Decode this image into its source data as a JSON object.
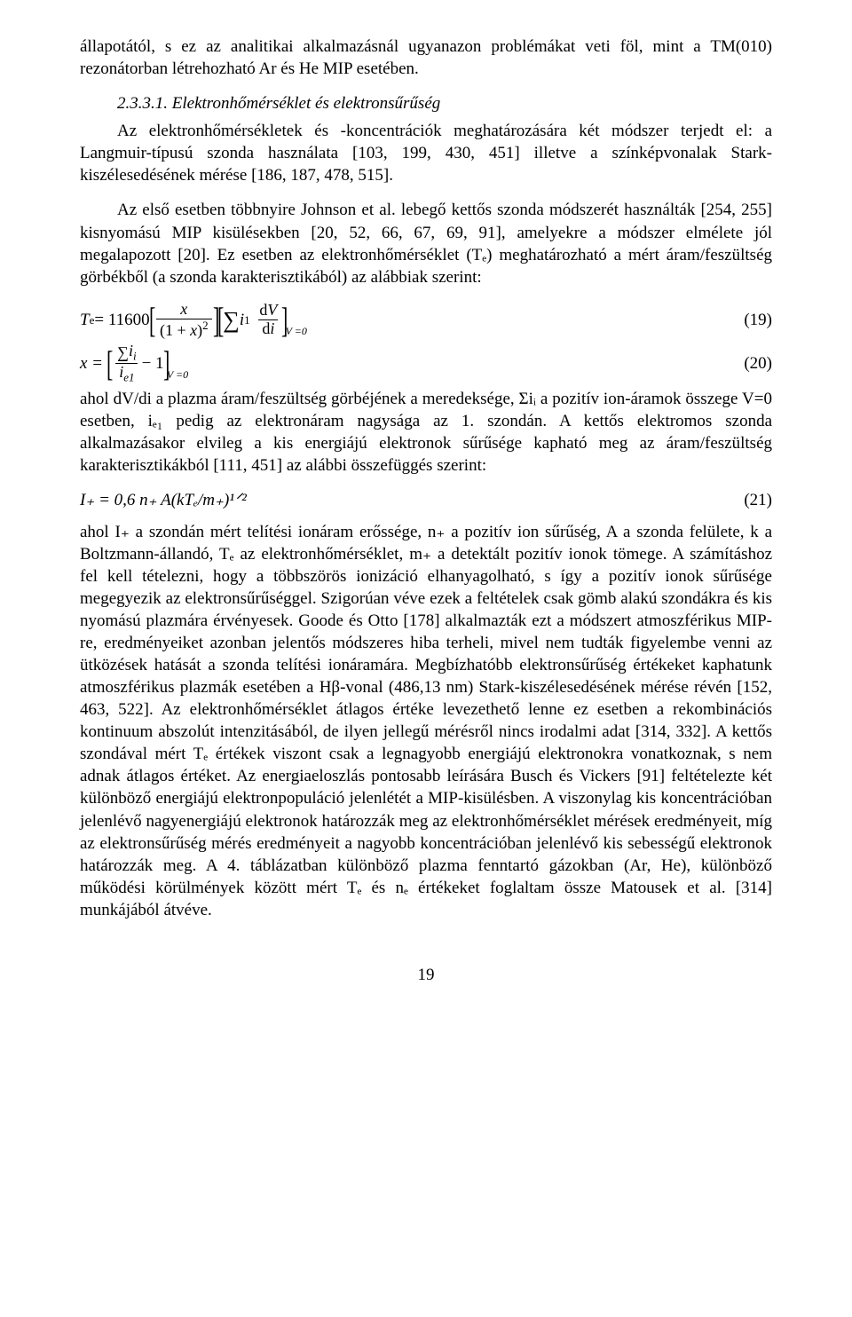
{
  "para1": "állapotától, s ez az analitikai alkalmazásnál ugyanazon problémákat veti föl, mint a TM(010) rezonátorban létrehozható Ar és He MIP esetében.",
  "heading": "2.3.3.1. Elektronhőmérséklet és elektronsűrűség",
  "para2a": "Az elektronhőmérsékletek és -koncentrációk meghatározására két módszer terjedt el: a Langmuir-típusú szonda használata [103, 199, 430, 451] illetve a színképvonalak Stark-kiszélesedésének mérése [186, 187, 478, 515].",
  "para2b": "Az első esetben többnyire Johnson et al. lebegő kettős szonda módszerét használták [254, 255] kisnyomású MIP kisülésekben [20, 52, 66, 67, 69, 91], amelyekre a módszer elmélete jól megalapozott [20]. Ez esetben az elektronhőmérséklet (Tₑ) meghatározható a mért áram/feszültség görbékből (a szonda karakterisztikából) az alábbiak szerint:",
  "eq19": {
    "lead": "T",
    "lead_sub": "e",
    "eq": " = 11600",
    "frac1_num": "x",
    "frac1_den_pre": "(1 + ",
    "frac1_den_var": "x",
    "frac1_den_post": ")",
    "frac1_den_sup": "2",
    "sum_var": "i",
    "sum_sub": "1",
    "frac2_num_pre": "d",
    "frac2_num_var": "V",
    "frac2_den_pre": "d",
    "frac2_den_var": "i",
    "brk_sub": "V =0",
    "num": "(19)"
  },
  "eq20": {
    "lhs": "x =",
    "sum_var": "i",
    "sum_sub": "i",
    "den_var": "i",
    "den_sub": "e1",
    "minus": " − 1",
    "brk_sub": "V =0",
    "num": "(20)"
  },
  "para3": "ahol dV/di a plazma áram/feszültség görbéjének a meredeksége, Σiᵢ a pozitív ion-áramok összege V=0 esetben, iₑ₁ pedig az elektronáram nagysága az 1. szondán. A kettős elektromos szonda alkalmazásakor elvileg a kis energiájú elektronok sűrűsége kapható meg az áram/feszültség karakterisztikákból [111, 451] az alábbi összefüggés szerint:",
  "eq21": {
    "text": "I₊ = 0,6 n₊ A(kTₑ/m₊)¹ᐟ²",
    "num": "(21)"
  },
  "para4": "ahol I₊ a szondán mért telítési ionáram erőssége, n₊ a pozitív ion sűrűség, A a szonda felülete, k a Boltzmann-állandó, Tₑ az elektronhőmérséklet, m₊ a detektált pozitív ionok tömege. A számításhoz fel kell tételezni, hogy a többszörös ionizáció elhanyagolható, s így a pozitív ionok sűrűsége megegyezik az elektronsűrűséggel. Szigorúan véve ezek a feltételek csak gömb alakú szondákra és kis nyomású plazmára érvényesek. Goode és Otto [178] alkalmazták ezt a módszert atmoszférikus MIP-re, eredményeiket azonban jelentős módszeres hiba terheli, mivel nem tudták figyelembe venni az ütközések hatását a szonda telítési ionáramára. Megbízhatóbb elektronsűrűség értékeket kaphatunk atmoszférikus plazmák esetében a Hβ-vonal (486,13 nm) Stark-kiszélesedésének mérése révén [152, 463, 522]. Az elektronhőmérséklet átlagos értéke levezethető lenne ez esetben a rekombinációs kontinuum abszolút intenzitásából, de ilyen jellegű mérésről nincs irodalmi adat [314, 332]. A kettős szondával mért Tₑ értékek viszont csak a legnagyobb energiájú elektronokra vonatkoznak, s nem adnak átlagos értéket. Az energiaeloszlás pontosabb leírására Busch és Vickers [91] feltételezte két különböző energiájú elektronpopuláció jelenlétét a MIP-kisülésben. A viszonylag kis koncentrációban jelenlévő nagyenergiájú elektronok határozzák meg az elektronhőmérséklet mérések eredményeit, míg az elektronsűrűség mérés eredményeit a nagyobb koncentrációban jelenlévő kis sebességű elektronok határozzák meg. A 4. táblázatban különböző plazma fenntartó gázokban (Ar, He), különböző működési körülmények között mért Tₑ és nₑ értékeket foglaltam össze Matousek et al. [314] munkájából átvéve.",
  "page": "19"
}
